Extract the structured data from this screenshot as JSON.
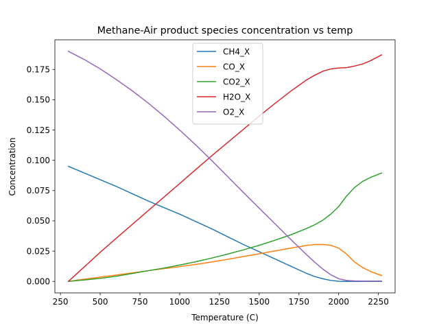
{
  "chart_data": {
    "type": "line",
    "title": "Methane-Air product species concentration vs temp",
    "xlabel": "Temperature (C)",
    "ylabel": "Concentration",
    "xlim": [
      215,
      2355
    ],
    "ylim": [
      -0.0095,
      0.1995
    ],
    "xticks": [
      250,
      500,
      750,
      1000,
      1250,
      1500,
      1750,
      2000,
      2250
    ],
    "yticks": [
      0.0,
      0.025,
      0.05,
      0.075,
      0.1,
      0.125,
      0.15,
      0.175
    ],
    "ytick_format": 3,
    "grid": false,
    "legend_position": "upper center",
    "series": [
      {
        "name": "CH4_X",
        "color": "#1f77b4",
        "x": [
          300,
          400,
          500,
          600,
          700,
          800,
          900,
          1000,
          1100,
          1200,
          1300,
          1400,
          1500,
          1600,
          1700,
          1800,
          1850,
          1900,
          1950,
          2000,
          2050,
          2100,
          2150,
          2200,
          2270
        ],
        "y": [
          0.095,
          0.0895,
          0.084,
          0.0785,
          0.0725,
          0.0665,
          0.061,
          0.0555,
          0.0495,
          0.0435,
          0.037,
          0.0305,
          0.0245,
          0.0185,
          0.0125,
          0.0065,
          0.004,
          0.0022,
          0.0008,
          0.0001,
          0.0,
          0.0,
          0.0,
          0.0,
          0.0
        ]
      },
      {
        "name": "CO_X",
        "color": "#ff7f0e",
        "x": [
          300,
          400,
          500,
          600,
          700,
          800,
          900,
          1000,
          1100,
          1200,
          1300,
          1400,
          1500,
          1600,
          1700,
          1800,
          1850,
          1900,
          1950,
          2000,
          2050,
          2100,
          2150,
          2200,
          2270
        ],
        "y": [
          0.0,
          0.0018,
          0.0035,
          0.0052,
          0.007,
          0.0088,
          0.0105,
          0.0122,
          0.014,
          0.016,
          0.0182,
          0.0205,
          0.0228,
          0.0252,
          0.0275,
          0.0297,
          0.0304,
          0.0305,
          0.0298,
          0.0275,
          0.0225,
          0.016,
          0.0115,
          0.0082,
          0.0048
        ]
      },
      {
        "name": "CO2_X",
        "color": "#2ca02c",
        "x": [
          300,
          400,
          500,
          600,
          700,
          800,
          900,
          1000,
          1100,
          1200,
          1300,
          1400,
          1500,
          1600,
          1700,
          1800,
          1850,
          1900,
          1950,
          2000,
          2050,
          2100,
          2150,
          2200,
          2270
        ],
        "y": [
          0.0,
          0.0012,
          0.0025,
          0.0042,
          0.0065,
          0.0088,
          0.011,
          0.0135,
          0.0162,
          0.0192,
          0.0225,
          0.026,
          0.0298,
          0.034,
          0.0385,
          0.0438,
          0.0468,
          0.0505,
          0.0555,
          0.0618,
          0.0705,
          0.0775,
          0.0825,
          0.0858,
          0.0895
        ]
      },
      {
        "name": "H2O_X",
        "color": "#d62728",
        "x": [
          300,
          400,
          500,
          600,
          700,
          800,
          900,
          1000,
          1100,
          1200,
          1300,
          1400,
          1500,
          1600,
          1700,
          1800,
          1850,
          1900,
          1950,
          2000,
          2050,
          2100,
          2150,
          2200,
          2270
        ],
        "y": [
          0.0,
          0.012,
          0.024,
          0.0355,
          0.0468,
          0.0582,
          0.0695,
          0.0808,
          0.0922,
          0.1035,
          0.1145,
          0.1255,
          0.1365,
          0.147,
          0.1572,
          0.1665,
          0.1703,
          0.1735,
          0.1754,
          0.1762,
          0.1765,
          0.1778,
          0.1795,
          0.1822,
          0.187
        ]
      },
      {
        "name": "O2_X",
        "color": "#9467bd",
        "x": [
          300,
          400,
          500,
          600,
          700,
          800,
          900,
          1000,
          1100,
          1200,
          1300,
          1400,
          1500,
          1600,
          1700,
          1800,
          1850,
          1900,
          1950,
          2000,
          2050,
          2100,
          2150,
          2200,
          2270
        ],
        "y": [
          0.19,
          0.1832,
          0.1755,
          0.1668,
          0.1575,
          0.1475,
          0.1365,
          0.125,
          0.1128,
          0.1,
          0.0868,
          0.0735,
          0.0605,
          0.0475,
          0.0345,
          0.0218,
          0.0158,
          0.0102,
          0.0055,
          0.0022,
          0.0008,
          0.0004,
          0.0003,
          0.0003,
          0.0003
        ]
      }
    ]
  }
}
